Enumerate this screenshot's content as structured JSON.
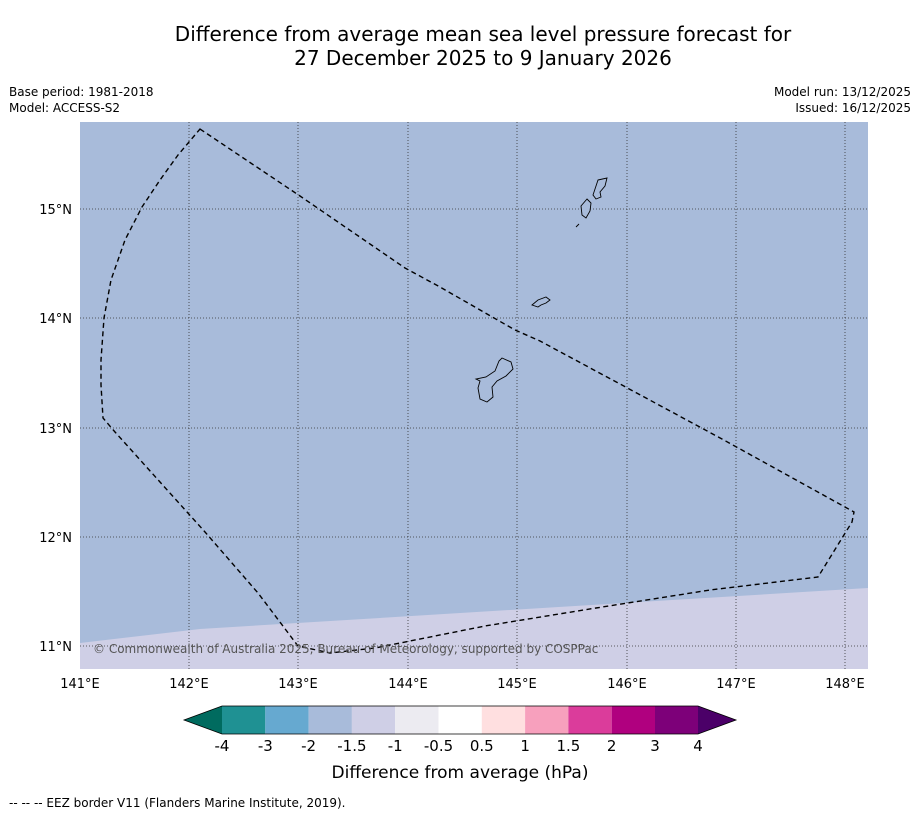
{
  "title": {
    "line1": "Difference from average mean sea level pressure forecast for",
    "line2": "27 December 2025 to 9 January 2026"
  },
  "meta": {
    "base_period": "Base period: 1981-2018",
    "model": "Model: ACCESS-S2",
    "model_run": "Model run: 13/12/2025",
    "issued": "Issued: 16/12/2025"
  },
  "map": {
    "lon_labels": [
      "141°E",
      "142°E",
      "143°E",
      "144°E",
      "145°E",
      "146°E",
      "147°E",
      "148°E"
    ],
    "lat_labels": [
      "15°N",
      "14°N",
      "13°N",
      "12°N",
      "11°N"
    ],
    "copyright": "© Commonwealth of Australia 2025, Bureau of Meteorology, supported by COSPPac",
    "colors": {
      "main_field": "#a8bbda",
      "south_field": "#cfcfe6"
    }
  },
  "colorbar": {
    "label": "Difference from average (hPa)",
    "ticks": [
      "-4",
      "-3",
      "-2",
      "-1.5",
      "-1",
      "-0.5",
      "0.5",
      "1",
      "1.5",
      "2",
      "3",
      "4"
    ],
    "colors": [
      "#006b5f",
      "#1f9193",
      "#66a9d0",
      "#a8bbda",
      "#cfcfe6",
      "#ecebf1",
      "#ffffff",
      "#ffdfe0",
      "#f7a0bd",
      "#db3c9b",
      "#b0007f",
      "#7d0079",
      "#4b0068"
    ]
  },
  "footnote": "--  --  -- EEZ border V11 (Flanders Marine Institute, 2019)."
}
